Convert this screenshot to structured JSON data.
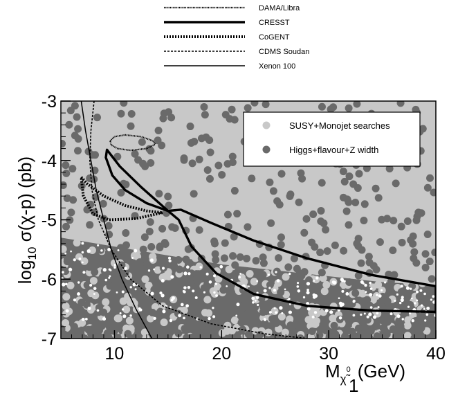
{
  "chart_data": {
    "type": "scatter",
    "title": "",
    "xlabel_main": "M",
    "xlabel_sub": "χ̃",
    "xlabel_sup": "0",
    "xlabel_subsub": "1",
    "xlabel_unit": "(GeV)",
    "ylabel_prefix": "log",
    "ylabel_sub": "10",
    "ylabel_rest": " σ(χ-p) (pb)",
    "xlim": [
      5,
      40
    ],
    "ylim": [
      -7,
      -3
    ],
    "xticks": [
      {
        "value": 10,
        "label": "10"
      },
      {
        "value": 20,
        "label": "20"
      },
      {
        "value": 30,
        "label": "30"
      },
      {
        "value": 40,
        "label": "40"
      }
    ],
    "yticks": [
      {
        "value": -3,
        "label": "-3"
      },
      {
        "value": -4,
        "label": "-4"
      },
      {
        "value": -5,
        "label": "-5"
      },
      {
        "value": -6,
        "label": "-6"
      },
      {
        "value": -7,
        "label": "-7"
      }
    ],
    "top_legend": [
      {
        "label": "DAMA/Libra",
        "style": "dense-dotted"
      },
      {
        "label": "CRESST",
        "style": "thick-solid"
      },
      {
        "label": "CoGENT",
        "style": "thick-dotted"
      },
      {
        "label": "CDMS  Soudan",
        "style": "thin-dashed"
      },
      {
        "label": "Xenon 100",
        "style": "thin-solid"
      }
    ],
    "series": [
      {
        "name": "SUSY+Monojet searches",
        "color": "#c8c8c8",
        "marker": "circle"
      },
      {
        "name": "Higgs+flavour+Z width",
        "color": "#6a6a6a",
        "marker": "circle"
      }
    ],
    "regions": {
      "light_band_upper_edge": [
        [
          5,
          -3
        ],
        [
          40,
          -3
        ]
      ],
      "dark_band_upper_edge": [
        [
          5,
          -5.3
        ],
        [
          10,
          -5.45
        ],
        [
          15,
          -5.6
        ],
        [
          20,
          -5.75
        ],
        [
          25,
          -5.85
        ],
        [
          30,
          -5.95
        ],
        [
          35,
          -6.05
        ],
        [
          40,
          -6.1
        ]
      ]
    },
    "curves": [
      {
        "name": "DAMA/Libra",
        "style": "dense-dotted",
        "closed": true,
        "points": [
          [
            9.6,
            -3.67
          ],
          [
            10.0,
            -3.6
          ],
          [
            11.0,
            -3.57
          ],
          [
            12.5,
            -3.6
          ],
          [
            13.6,
            -3.67
          ],
          [
            13.8,
            -3.73
          ],
          [
            13.0,
            -3.8
          ],
          [
            11.5,
            -3.83
          ],
          [
            10.3,
            -3.8
          ],
          [
            9.7,
            -3.74
          ]
        ]
      },
      {
        "name": "CRESST",
        "style": "thick-solid",
        "closed": false,
        "points": [
          [
            15.0,
            -4.85
          ],
          [
            12.5,
            -4.45
          ],
          [
            10.5,
            -4.1
          ],
          [
            9.3,
            -3.82
          ],
          [
            9.2,
            -3.95
          ],
          [
            9.8,
            -4.25
          ],
          [
            11.0,
            -4.5
          ],
          [
            13.0,
            -4.72
          ],
          [
            15.0,
            -4.85
          ],
          [
            16.2,
            -4.83
          ],
          [
            19.0,
            -5.05
          ],
          [
            23.0,
            -5.35
          ],
          [
            28.0,
            -5.65
          ],
          [
            34.0,
            -5.93
          ],
          [
            40.0,
            -6.12
          ],
          [
            40.0,
            -6.55
          ],
          [
            34.0,
            -6.53
          ],
          [
            28.0,
            -6.45
          ],
          [
            23.0,
            -6.25
          ],
          [
            19.5,
            -5.9
          ],
          [
            17.2,
            -5.45
          ],
          [
            16.0,
            -5.0
          ],
          [
            15.0,
            -4.85
          ]
        ]
      },
      {
        "name": "CoGENT",
        "style": "thick-dotted",
        "closed": true,
        "points": [
          [
            6.9,
            -4.28
          ],
          [
            7.5,
            -4.4
          ],
          [
            9.0,
            -4.6
          ],
          [
            11.0,
            -4.76
          ],
          [
            13.0,
            -4.85
          ],
          [
            14.5,
            -4.88
          ],
          [
            12.0,
            -4.98
          ],
          [
            9.5,
            -5.0
          ],
          [
            8.0,
            -4.9
          ],
          [
            7.1,
            -4.6
          ]
        ]
      },
      {
        "name": "CDMS  Soudan",
        "style": "thin-dashed",
        "closed": false,
        "points": [
          [
            8.1,
            -3.0
          ],
          [
            7.8,
            -3.5
          ],
          [
            7.7,
            -4.0
          ],
          [
            7.9,
            -4.5
          ],
          [
            8.5,
            -5.0
          ],
          [
            9.7,
            -5.5
          ],
          [
            11.5,
            -6.0
          ],
          [
            14.5,
            -6.45
          ],
          [
            19.0,
            -6.75
          ],
          [
            24.0,
            -6.92
          ],
          [
            28.0,
            -7.0
          ]
        ]
      },
      {
        "name": "Xenon 100",
        "style": "thin-solid",
        "closed": false,
        "points": [
          [
            6.9,
            -3.0
          ],
          [
            7.3,
            -3.5
          ],
          [
            7.8,
            -4.0
          ],
          [
            8.3,
            -4.5
          ],
          [
            9.0,
            -5.0
          ],
          [
            9.7,
            -5.5
          ],
          [
            10.7,
            -6.0
          ],
          [
            12.0,
            -6.5
          ],
          [
            13.5,
            -7.0
          ]
        ]
      }
    ]
  }
}
